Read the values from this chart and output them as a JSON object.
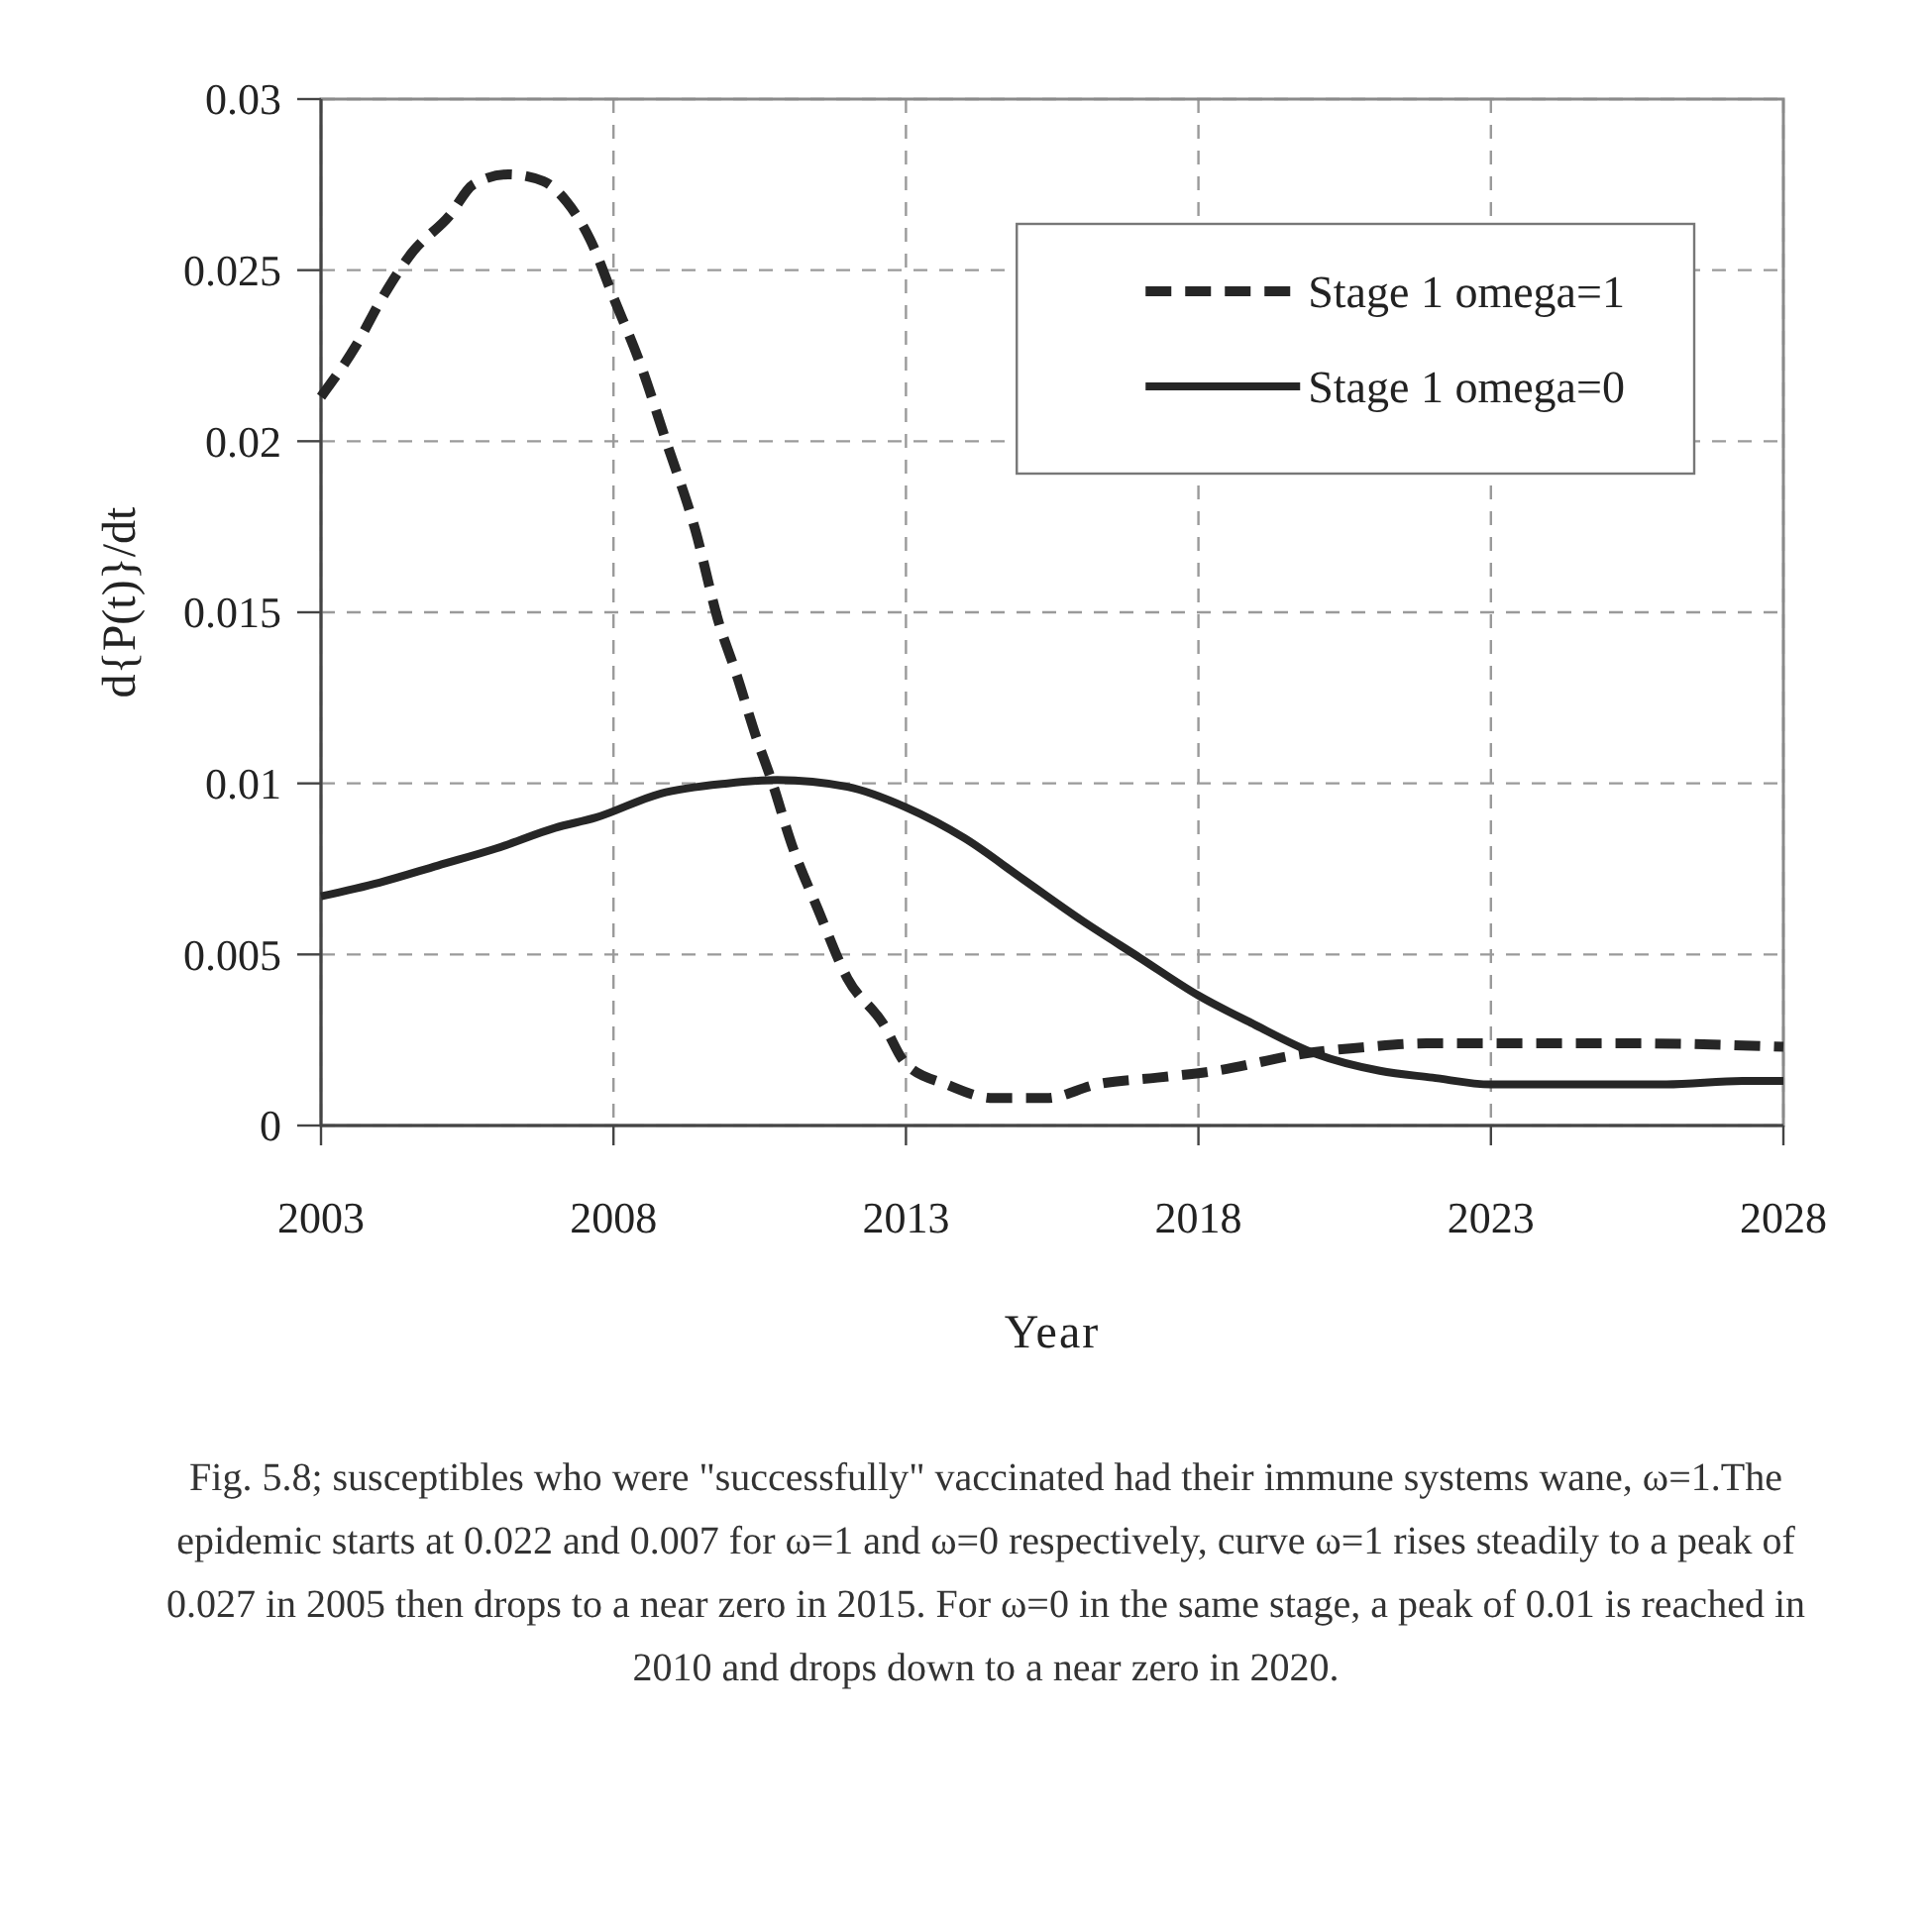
{
  "chart_data": {
    "type": "line",
    "xlabel": "Year",
    "ylabel": "d{P(t)}/dt",
    "xlim": [
      2003,
      2028
    ],
    "xticks": [
      2003,
      2008,
      2013,
      2018,
      2023,
      2028
    ],
    "ylim": [
      0,
      0.03
    ],
    "yticks": [
      0,
      0.005,
      0.01,
      0.015,
      0.02,
      0.025,
      0.03
    ],
    "grid": true,
    "legend": "top right",
    "series": [
      {
        "name": "Stage 1 omega=1",
        "color": "#262626",
        "line_style": "dashed",
        "x": [
          2003,
          2003.6,
          2004.05,
          2004.55,
          2005.2,
          2005.6,
          2006.2,
          2006.8,
          2007.2,
          2007.6,
          2008,
          2008.45,
          2008.9,
          2009.4,
          2009.8,
          2010.1,
          2010.45,
          2010.7,
          2011.05,
          2011.5,
          2012,
          2012.6,
          2013,
          2013.7,
          2014.5,
          2015.4,
          2016.25,
          2017.3,
          2018.3,
          2019.8,
          2020.9,
          2021.9,
          2023,
          2025.5,
          2028
        ],
        "values": [
          0.0213,
          0.0228,
          0.0242,
          0.0255,
          0.0266,
          0.0275,
          0.0278,
          0.0276,
          0.027,
          0.0259,
          0.0242,
          0.0223,
          0.02,
          0.0174,
          0.0147,
          0.0132,
          0.0113,
          0.0101,
          0.0082,
          0.0063,
          0.0043,
          0.003,
          0.0018,
          0.0012,
          0.0008,
          0.0008,
          0.0012,
          0.0014,
          0.0016,
          0.0021,
          0.0023,
          0.0024,
          0.0024,
          0.0024,
          0.0023
        ]
      },
      {
        "name": "Stage 1 omega=0",
        "color": "#262626",
        "line_style": "solid",
        "x": [
          2003,
          2004,
          2005,
          2006,
          2007,
          2007.7,
          2008.8,
          2009.95,
          2010.8,
          2012,
          2013,
          2014,
          2015,
          2016,
          2017,
          2018,
          2018.9,
          2020,
          2021.1,
          2022,
          2023,
          2026,
          2027.3,
          2028
        ],
        "values": [
          0.0067,
          0.0071,
          0.0076,
          0.0081,
          0.0087,
          0.009,
          0.0097,
          0.01,
          0.0101,
          0.0099,
          0.0093,
          0.0084,
          0.0072,
          0.006,
          0.0049,
          0.0038,
          0.003,
          0.0021,
          0.0016,
          0.0014,
          0.0012,
          0.0012,
          0.0013,
          0.0013
        ]
      }
    ],
    "annotations": [
      "Fig. 5.8; susceptibles who were \"successfully\" vaccinated had their immune systems wane, ω=1.The epidemic starts at 0.022 and 0.007 for ω=1 and ω=0 respectively, curve ω=1 rises steadily to a peak of 0.027 in 2005 then drops to a near zero in 2015. For ω=0 in the same stage, a peak of 0.01 is reached in 2010 and drops down to a near zero in 2020."
    ]
  }
}
